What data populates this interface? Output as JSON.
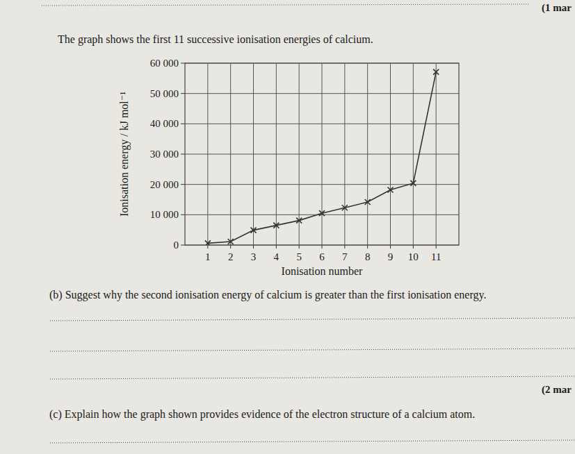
{
  "chart_data": {
    "type": "line",
    "x_label": "Ionisation number",
    "y_label": "Ionisation energy / kJ mol⁻¹",
    "x": [
      1,
      2,
      3,
      4,
      5,
      6,
      7,
      8,
      9,
      10,
      11
    ],
    "values": [
      600,
      1150,
      4900,
      6500,
      8100,
      10500,
      12300,
      14200,
      18200,
      20400,
      57100
    ],
    "color": "#333333",
    "marker": "x",
    "xlim": [
      0,
      12
    ],
    "xticks": [
      1,
      2,
      3,
      4,
      5,
      6,
      7,
      8,
      9,
      10,
      11
    ],
    "ylim": [
      0,
      60000
    ],
    "yticks": [
      0,
      {
        "value": 10000,
        "label": "10 000"
      },
      {
        "value": 20000,
        "label": "20 000"
      },
      {
        "value": 30000,
        "label": "30 000"
      },
      {
        "value": 40000,
        "label": "40 000"
      },
      {
        "value": 50000,
        "label": "50 000"
      },
      {
        "value": 60000,
        "label": "60 000"
      }
    ],
    "grid": true
  },
  "page": {
    "mark_top": "(1 mar",
    "intro": "The graph shows the first 11 successive ionisation energies of calcium.",
    "question_b": "(b)   Suggest why the second ionisation energy of calcium is greater than the first ionisation energy.",
    "mark_b": "(2 mar",
    "question_c": "(c)   Explain how the graph shown provides evidence of the electron structure of a calcium atom."
  }
}
